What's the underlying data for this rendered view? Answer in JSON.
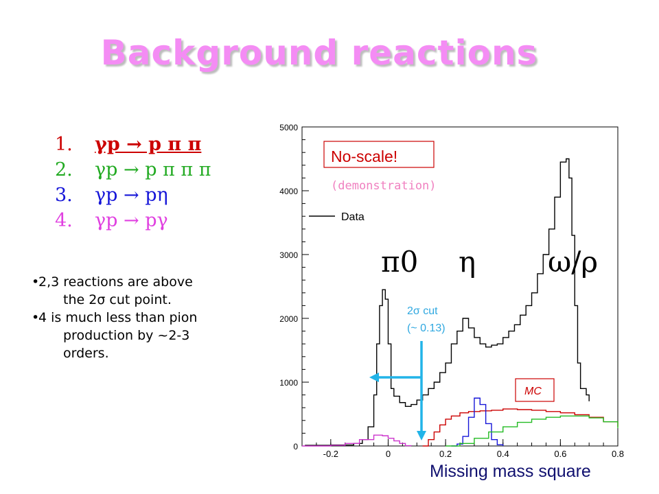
{
  "title": "Background reactions",
  "reactions": [
    {
      "num": "1.",
      "text": "γp  p π π",
      "color": "#cc0000"
    },
    {
      "num": "2.",
      "text": "γp  p π π π",
      "color": "#22aa22"
    },
    {
      "num": "3.",
      "text": "γp  pη",
      "color": "#1515d8"
    },
    {
      "num": "4.",
      "text": "γp  pγ",
      "color": "#e040e0"
    }
  ],
  "notes": [
    {
      "line1": "2,3 reactions are above",
      "line2": "the 2σ cut point."
    },
    {
      "line1": "4 is much less than pion",
      "line2": "production by ~2-3",
      "line3": "orders."
    }
  ],
  "annotations": {
    "noscale": "No-scale!",
    "demo": "(demonstration)",
    "data_legend": "Data",
    "pi0": "π0",
    "eta": "η",
    "omega_rho": "ω/ρ",
    "cut_line1": "2σ cut",
    "cut_line2": "(~ 0.13)",
    "mc": "MC"
  },
  "chart_data": {
    "type": "line",
    "xlabel": "Missing mass square",
    "ylabel": "",
    "xlim": [
      -0.3,
      0.8
    ],
    "ylim": [
      0,
      5000
    ],
    "x_ticks": [
      -0.2,
      0,
      0.2,
      0.4,
      0.6,
      0.8
    ],
    "y_ticks": [
      0,
      1000,
      2000,
      3000,
      4000,
      5000
    ],
    "cut_value": 0.13,
    "series": [
      {
        "name": "Data",
        "color": "#000000",
        "points": [
          [
            -0.29,
            10
          ],
          [
            -0.2,
            15
          ],
          [
            -0.12,
            40
          ],
          [
            -0.09,
            100
          ],
          [
            -0.07,
            300
          ],
          [
            -0.05,
            800
          ],
          [
            -0.04,
            1600
          ],
          [
            -0.03,
            2200
          ],
          [
            -0.02,
            2450
          ],
          [
            -0.015,
            2450
          ],
          [
            -0.01,
            2300
          ],
          [
            0,
            1600
          ],
          [
            0.01,
            900
          ],
          [
            0.02,
            780
          ],
          [
            0.04,
            680
          ],
          [
            0.06,
            620
          ],
          [
            0.08,
            650
          ],
          [
            0.1,
            720
          ],
          [
            0.12,
            800
          ],
          [
            0.14,
            900
          ],
          [
            0.16,
            1000
          ],
          [
            0.18,
            1150
          ],
          [
            0.2,
            1300
          ],
          [
            0.22,
            1600
          ],
          [
            0.24,
            1800
          ],
          [
            0.26,
            2000
          ],
          [
            0.28,
            1850
          ],
          [
            0.3,
            1700
          ],
          [
            0.32,
            1600
          ],
          [
            0.34,
            1550
          ],
          [
            0.36,
            1580
          ],
          [
            0.38,
            1600
          ],
          [
            0.4,
            1700
          ],
          [
            0.42,
            1800
          ],
          [
            0.44,
            1900
          ],
          [
            0.46,
            2050
          ],
          [
            0.48,
            2200
          ],
          [
            0.5,
            2400
          ],
          [
            0.52,
            2700
          ],
          [
            0.54,
            3000
          ],
          [
            0.56,
            3400
          ],
          [
            0.58,
            3900
          ],
          [
            0.6,
            4450
          ],
          [
            0.62,
            4500
          ],
          [
            0.63,
            4200
          ],
          [
            0.64,
            3300
          ],
          [
            0.65,
            2200
          ],
          [
            0.66,
            1300
          ],
          [
            0.67,
            900
          ],
          [
            0.69,
            800
          ],
          [
            0.7,
            700
          ]
        ]
      },
      {
        "name": "",
        "color": "#cc0000",
        "points": [
          [
            0.12,
            0
          ],
          [
            0.14,
            100
          ],
          [
            0.16,
            220
          ],
          [
            0.18,
            330
          ],
          [
            0.2,
            420
          ],
          [
            0.22,
            470
          ],
          [
            0.25,
            520
          ],
          [
            0.28,
            540
          ],
          [
            0.32,
            550
          ],
          [
            0.36,
            560
          ],
          [
            0.4,
            580
          ],
          [
            0.45,
            570
          ],
          [
            0.5,
            560
          ],
          [
            0.55,
            540
          ],
          [
            0.6,
            520
          ],
          [
            0.65,
            490
          ],
          [
            0.7,
            450
          ],
          [
            0.75,
            380
          ],
          [
            0.8,
            300
          ]
        ]
      },
      {
        "name": "",
        "color": "#1515d8",
        "points": [
          [
            0.22,
            0
          ],
          [
            0.24,
            30
          ],
          [
            0.26,
            150
          ],
          [
            0.28,
            450
          ],
          [
            0.3,
            750
          ],
          [
            0.32,
            650
          ],
          [
            0.34,
            350
          ],
          [
            0.36,
            100
          ],
          [
            0.38,
            20
          ],
          [
            0.4,
            0
          ]
        ]
      },
      {
        "name": "",
        "color": "#22bb22",
        "points": [
          [
            0.2,
            0
          ],
          [
            0.25,
            40
          ],
          [
            0.3,
            120
          ],
          [
            0.35,
            220
          ],
          [
            0.4,
            300
          ],
          [
            0.45,
            370
          ],
          [
            0.5,
            420
          ],
          [
            0.55,
            450
          ],
          [
            0.6,
            470
          ],
          [
            0.65,
            470
          ],
          [
            0.7,
            440
          ],
          [
            0.75,
            380
          ],
          [
            0.8,
            280
          ]
        ]
      },
      {
        "name": "",
        "color": "#cc33cc",
        "points": [
          [
            -0.3,
            0
          ],
          [
            -0.2,
            10
          ],
          [
            -0.15,
            40
          ],
          [
            -0.1,
            100
          ],
          [
            -0.05,
            170
          ],
          [
            -0.02,
            160
          ],
          [
            0,
            120
          ],
          [
            0.02,
            80
          ],
          [
            0.04,
            40
          ],
          [
            0.06,
            5
          ],
          [
            0.08,
            0
          ]
        ]
      }
    ]
  }
}
